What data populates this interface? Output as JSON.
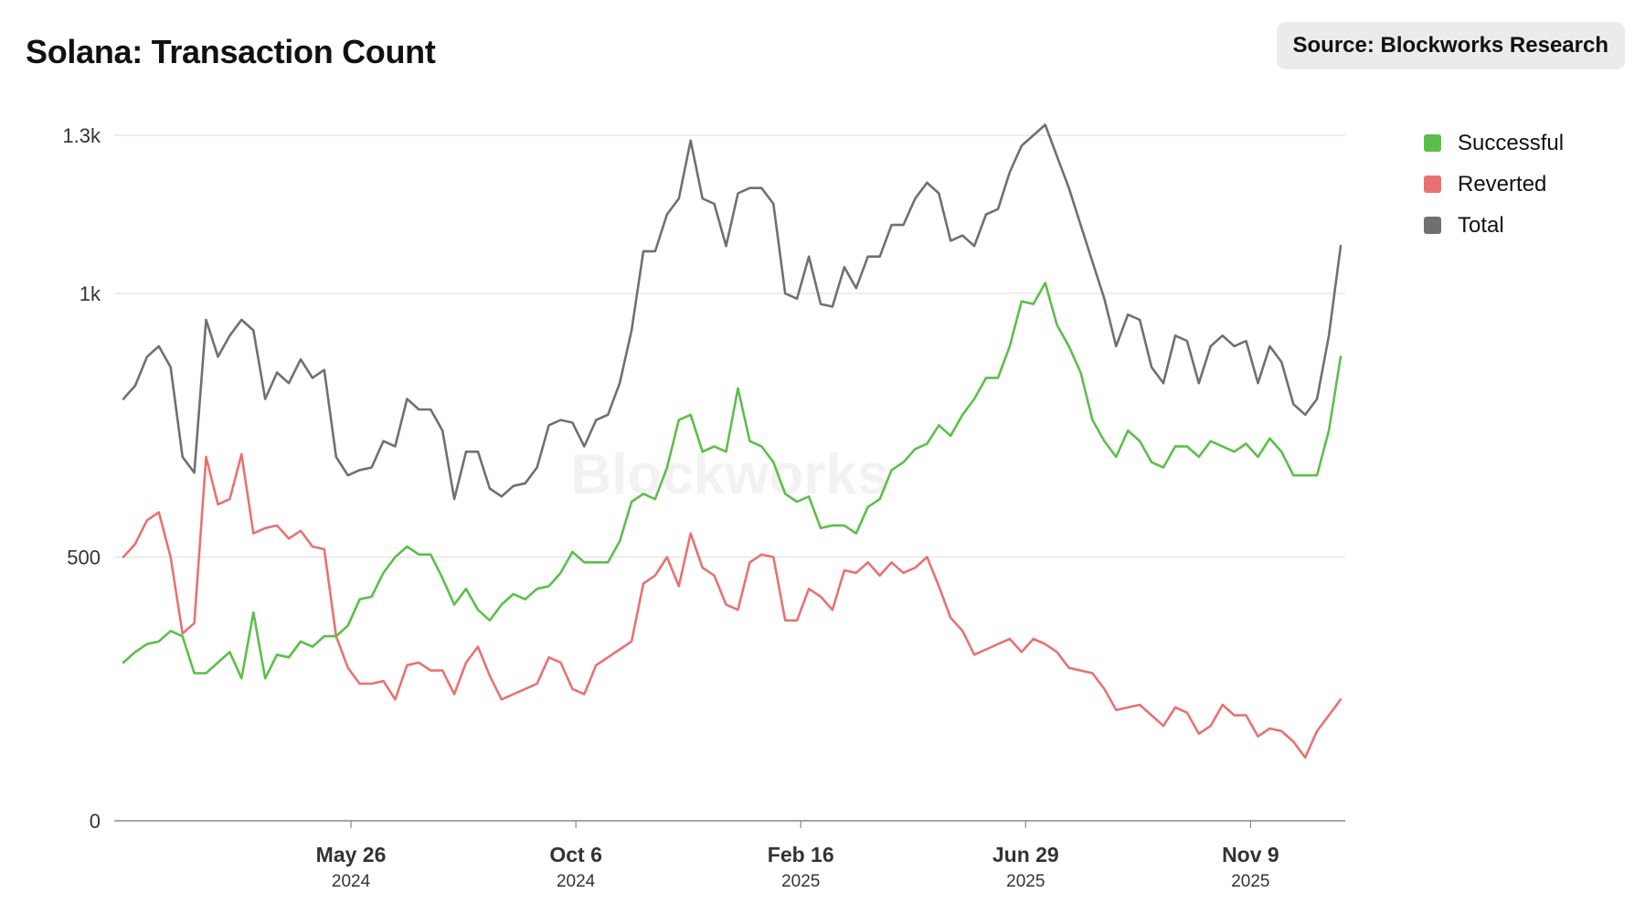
{
  "title": "Solana: Transaction Count",
  "source": "Source: Blockworks Research",
  "watermark": "Blockworks",
  "colors": {
    "successful": "#5cbf4a",
    "reverted": "#e87272",
    "total": "#707070",
    "grid": "#e0e0e0",
    "axis": "#888888"
  },
  "chart_data": {
    "type": "line",
    "title": "Solana: Transaction Count",
    "xlabel": "",
    "ylabel": "",
    "x_start": "2024-01-07",
    "x_end": "2026-01-04",
    "ylim": [
      0,
      1300
    ],
    "y_ticks": [
      {
        "value": 0,
        "label": "0"
      },
      {
        "value": 500,
        "label": "500"
      },
      {
        "value": 1000,
        "label": "1k"
      },
      {
        "value": 1300,
        "label": "1.3k"
      }
    ],
    "x_ticks": [
      {
        "date": "2024-05-26",
        "label": "May 26",
        "year": "2024"
      },
      {
        "date": "2024-10-06",
        "label": "Oct 6",
        "year": "2024"
      },
      {
        "date": "2025-02-16",
        "label": "Feb 16",
        "year": "2025"
      },
      {
        "date": "2025-06-29",
        "label": "Jun 29",
        "year": "2025"
      },
      {
        "date": "2025-11-09",
        "label": "Nov 9",
        "year": "2025"
      }
    ],
    "legend_position": "top-right",
    "grid": true,
    "series": [
      {
        "name": "Successful",
        "color": "#5cbf4a",
        "values": [
          300,
          320,
          335,
          340,
          360,
          350,
          280,
          280,
          300,
          320,
          270,
          395,
          270,
          315,
          310,
          340,
          330,
          350,
          350,
          370,
          420,
          425,
          470,
          500,
          520,
          505,
          505,
          460,
          410,
          440,
          400,
          380,
          410,
          430,
          420,
          440,
          445,
          470,
          510,
          490,
          490,
          490,
          530,
          605,
          620,
          610,
          670,
          760,
          770,
          700,
          710,
          700,
          820,
          720,
          710,
          680,
          620,
          605,
          615,
          555,
          560,
          560,
          545,
          595,
          610,
          665,
          680,
          705,
          715,
          750,
          730,
          770,
          800,
          840,
          840,
          900,
          985,
          980,
          1020,
          940,
          900,
          850,
          760,
          720,
          690,
          740,
          720,
          680,
          670,
          710,
          710,
          690,
          720,
          710,
          700,
          715,
          690,
          725,
          700,
          655,
          655,
          655,
          740,
          880
        ]
      },
      {
        "name": "Reverted",
        "color": "#e87272",
        "values": [
          500,
          525,
          570,
          585,
          500,
          355,
          375,
          690,
          600,
          610,
          695,
          545,
          555,
          560,
          535,
          550,
          520,
          515,
          350,
          290,
          260,
          260,
          265,
          230,
          295,
          300,
          285,
          285,
          240,
          300,
          330,
          275,
          230,
          240,
          250,
          260,
          310,
          300,
          250,
          240,
          295,
          310,
          325,
          340,
          450,
          465,
          500,
          445,
          545,
          480,
          465,
          410,
          400,
          490,
          505,
          500,
          380,
          380,
          440,
          425,
          400,
          475,
          470,
          490,
          465,
          490,
          470,
          480,
          500,
          445,
          385,
          360,
          315,
          325,
          335,
          345,
          320,
          345,
          335,
          320,
          290,
          285,
          280,
          250,
          210,
          215,
          220,
          200,
          180,
          215,
          205,
          165,
          180,
          220,
          200,
          200,
          160,
          175,
          170,
          150,
          120,
          170,
          200,
          230
        ]
      },
      {
        "name": "Total",
        "color": "#707070",
        "values": [
          800,
          825,
          880,
          900,
          860,
          690,
          660,
          950,
          880,
          920,
          950,
          930,
          800,
          850,
          830,
          875,
          840,
          855,
          690,
          655,
          665,
          670,
          720,
          710,
          800,
          780,
          780,
          740,
          610,
          700,
          700,
          630,
          615,
          635,
          640,
          670,
          750,
          760,
          755,
          710,
          760,
          770,
          830,
          930,
          1080,
          1080,
          1150,
          1180,
          1290,
          1180,
          1170,
          1090,
          1190,
          1200,
          1200,
          1170,
          1000,
          990,
          1070,
          980,
          975,
          1050,
          1010,
          1070,
          1070,
          1130,
          1130,
          1180,
          1210,
          1190,
          1100,
          1110,
          1090,
          1150,
          1160,
          1230,
          1280,
          1300,
          1320,
          1260,
          1200,
          1130,
          1060,
          990,
          900,
          960,
          950,
          860,
          830,
          920,
          910,
          830,
          900,
          920,
          900,
          910,
          830,
          900,
          870,
          790,
          770,
          800,
          920,
          1090
        ]
      }
    ]
  }
}
